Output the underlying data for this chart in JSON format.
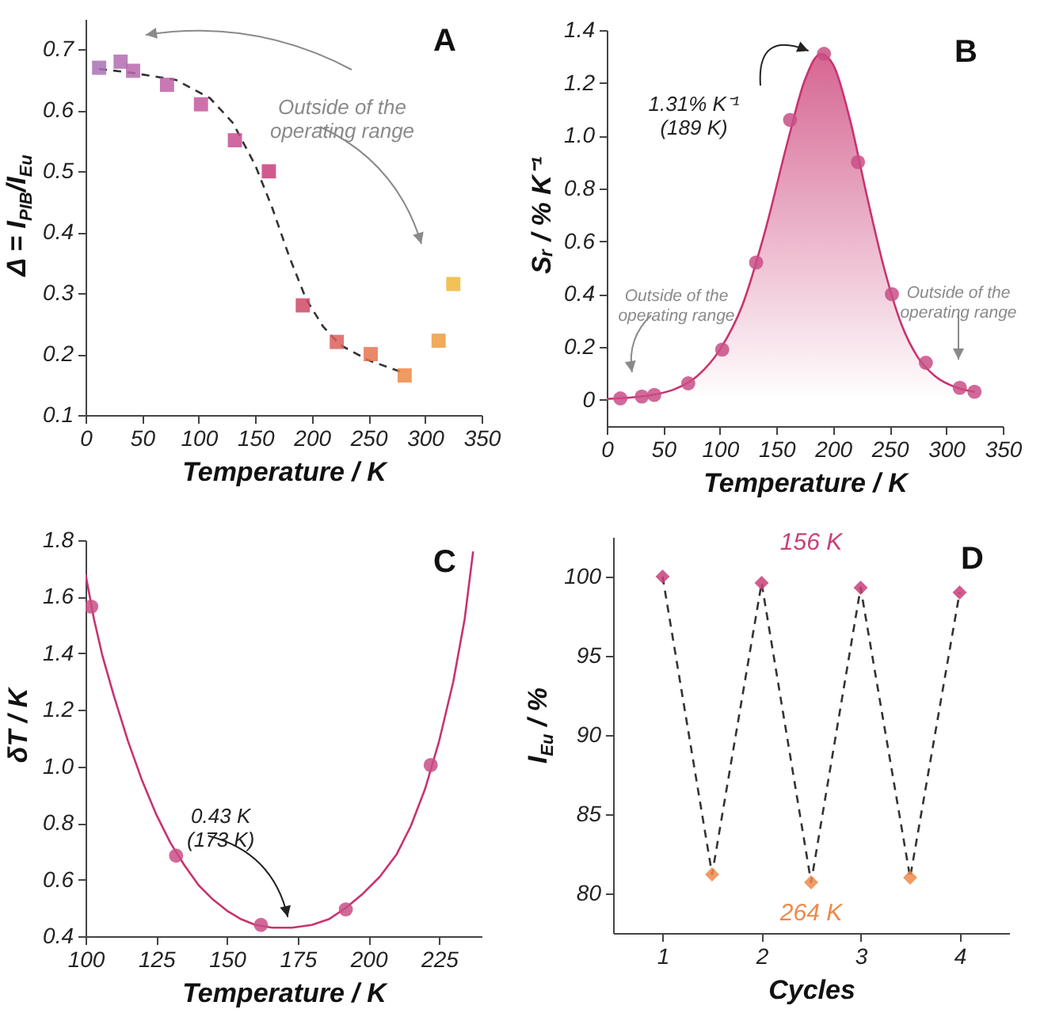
{
  "chart_data": [
    {
      "type": "scatter",
      "title": "A",
      "xlabel": "Temperature / K",
      "ylabel": "Δ = I$_{PIB}$/I$_{Eu}$",
      "xlim": [
        0,
        350
      ],
      "xticks": [
        0,
        50,
        100,
        150,
        200,
        250,
        300,
        350
      ],
      "ylim": [
        0.1,
        0.75
      ],
      "yticks": [
        0.1,
        0.2,
        0.3,
        0.4,
        0.5,
        0.6,
        0.7
      ],
      "annotations": [
        "Outside of the\noperating range"
      ],
      "series": [
        {
          "type": "line",
          "line_style": "dashed",
          "color": "#333333",
          "x": [
            12,
            40,
            80,
            110,
            130,
            150,
            165,
            180,
            195,
            210,
            225,
            250,
            280
          ],
          "values": [
            0.668,
            0.662,
            0.65,
            0.62,
            0.58,
            0.51,
            0.44,
            0.36,
            0.29,
            0.245,
            0.215,
            0.19,
            0.17
          ]
        },
        {
          "marker": "square",
          "x": [
            12,
            31,
            42,
            72,
            102,
            132,
            162,
            192,
            222,
            252,
            282,
            312,
            325
          ],
          "values": [
            0.67,
            0.68,
            0.665,
            0.642,
            0.61,
            0.551,
            0.5,
            0.28,
            0.22,
            0.2,
            0.165,
            0.222,
            0.315
          ],
          "colors": [
            "#a971b4",
            "#b26cb0",
            "#b868ad",
            "#c060a6",
            "#c4589c",
            "#c84f90",
            "#c8407a",
            "#cf4965",
            "#dc5f5a",
            "#e5744f",
            "#ec8845",
            "#ee9a40",
            "#f0b73a"
          ]
        }
      ]
    },
    {
      "type": "scatter",
      "title": "B",
      "xlabel": "Temperature / K",
      "ylabel": "Sᵣ / % K⁻¹",
      "xlim": [
        0,
        350
      ],
      "xticks": [
        0,
        50,
        100,
        150,
        200,
        250,
        300,
        350
      ],
      "ylim": [
        -0.1,
        1.4
      ],
      "yticks": [
        0,
        0.2,
        0.4,
        0.6,
        0.8,
        {
          "value": 1,
          "label": "1.0"
        },
        1.2,
        1.4
      ],
      "annotations": [
        {
          "text": "1.31% K⁻¹\n(189 K)",
          "x": 189,
          "y": 1.31
        },
        "Outside of the\noperating range",
        "Outside of the\noperating range"
      ],
      "series": [
        {
          "type": "area",
          "color": "#c8336f",
          "x": [
            0,
            20,
            40,
            60,
            80,
            100,
            120,
            140,
            160,
            175,
            189,
            200,
            215,
            230,
            245,
            260,
            275,
            290,
            310,
            325
          ],
          "values": [
            0.003,
            0.008,
            0.018,
            0.04,
            0.09,
            0.19,
            0.36,
            0.64,
            0.98,
            1.21,
            1.31,
            1.27,
            1.06,
            0.77,
            0.5,
            0.29,
            0.16,
            0.09,
            0.045,
            0.03
          ]
        },
        {
          "marker": "circle",
          "color": "#c94f86",
          "x": [
            12,
            31,
            42,
            72,
            102,
            132,
            162,
            192,
            222,
            252,
            282,
            312,
            325
          ],
          "values": [
            0.005,
            0.012,
            0.018,
            0.062,
            0.19,
            0.52,
            1.06,
            1.31,
            0.9,
            0.4,
            0.14,
            0.045,
            0.03
          ]
        }
      ]
    },
    {
      "type": "scatter",
      "title": "C",
      "xlabel": "Temperature / K",
      "ylabel": "δT / K",
      "xlim": [
        100,
        240
      ],
      "xticks": [
        100,
        125,
        150,
        175,
        200,
        225
      ],
      "ylim": [
        0.4,
        1.8
      ],
      "yticks": [
        0.4,
        0.6,
        0.8,
        {
          "value": 1,
          "label": "1.0"
        },
        1.2,
        1.4,
        1.6,
        1.8
      ],
      "annotations": [
        {
          "text": "0.43 K\n(173 K)",
          "x": 173,
          "y": 0.43
        }
      ],
      "series": [
        {
          "type": "line",
          "color": "#c8336f",
          "x": [
            100,
            103,
            106,
            110,
            115,
            120,
            125,
            130,
            135,
            140,
            145,
            150,
            155,
            160,
            166,
            173,
            180,
            186,
            192,
            198,
            204,
            210,
            215,
            220,
            225,
            230,
            234,
            237
          ],
          "values": [
            1.68,
            1.52,
            1.39,
            1.25,
            1.09,
            0.95,
            0.83,
            0.73,
            0.65,
            0.58,
            0.53,
            0.49,
            0.46,
            0.44,
            0.43,
            0.43,
            0.44,
            0.46,
            0.5,
            0.55,
            0.61,
            0.69,
            0.79,
            0.92,
            1.09,
            1.3,
            1.52,
            1.76
          ]
        },
        {
          "marker": "circle",
          "color": "#c94f86",
          "x": [
            102,
            132,
            162,
            192,
            222
          ],
          "values": [
            1.565,
            0.685,
            0.44,
            0.495,
            1.005
          ]
        }
      ]
    },
    {
      "type": "scatter",
      "title": "D",
      "xlabel": "Cycles",
      "ylabel": "I$_{Eu}$ / %",
      "xlim": [
        0.5,
        4.5
      ],
      "xticks": [
        1,
        2,
        3,
        4
      ],
      "ylim": [
        77.5,
        102.5
      ],
      "yticks": [
        80,
        85,
        90,
        95,
        100
      ],
      "series": [
        {
          "type": "line",
          "line_style": "dashed",
          "color": "#333333",
          "x": [
            1,
            1.5,
            2,
            2.5,
            3,
            3.5,
            4
          ],
          "values": [
            100,
            81.2,
            99.6,
            80.7,
            99.3,
            81.0,
            99.0
          ]
        },
        {
          "marker": "diamond",
          "name": "156 K",
          "color": "#c8407a",
          "x": [
            1,
            2,
            3,
            4
          ],
          "values": [
            100,
            99.6,
            99.3,
            99.0
          ]
        },
        {
          "marker": "diamond",
          "name": "264 K",
          "color": "#ee8a4a",
          "x": [
            1.5,
            2.5,
            3.5
          ],
          "values": [
            81.2,
            80.7,
            81.0
          ]
        }
      ]
    }
  ]
}
